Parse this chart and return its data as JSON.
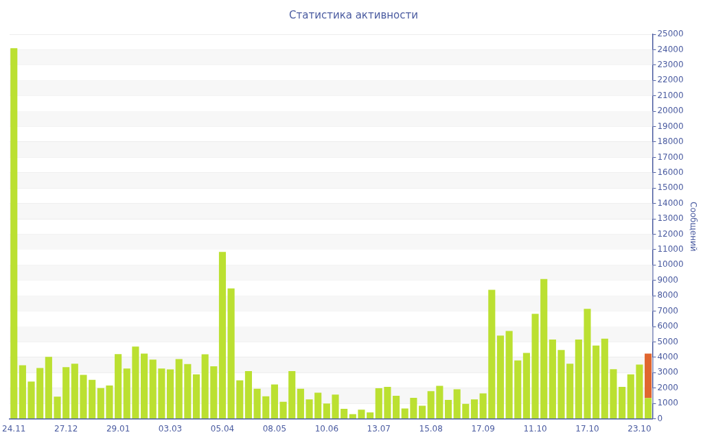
{
  "chart_data": {
    "type": "bar",
    "title": "Статистика активности",
    "ylabel": "Сообщений",
    "stacked": true,
    "categories": [
      "24.11",
      null,
      null,
      null,
      null,
      null,
      "27.12",
      null,
      null,
      null,
      null,
      null,
      "29.01",
      null,
      null,
      null,
      null,
      null,
      "03.03",
      null,
      null,
      null,
      null,
      null,
      "05.04",
      null,
      null,
      null,
      null,
      null,
      "08.05",
      null,
      null,
      null,
      null,
      null,
      "10.06",
      null,
      null,
      null,
      null,
      null,
      "13.07",
      null,
      null,
      null,
      null,
      null,
      "15.08",
      null,
      null,
      null,
      null,
      null,
      "17.09",
      null,
      null,
      null,
      null,
      null,
      "11.10",
      null,
      null,
      null,
      null,
      null,
      "17.10",
      null,
      null,
      null,
      null,
      null,
      "23.10",
      null
    ],
    "series": [
      {
        "color": "#bbe031",
        "values": [
          24100,
          3480,
          2420,
          3300,
          4030,
          1440,
          3360,
          3580,
          2860,
          2530,
          2000,
          2170,
          4210,
          3270,
          4700,
          4240,
          3850,
          3270,
          3210,
          3880,
          3560,
          2890,
          4200,
          3420,
          10850,
          8480,
          2500,
          3100,
          1950,
          1470,
          2230,
          1110,
          3100,
          1950,
          1260,
          1700,
          1000,
          1580,
          650,
          300,
          590,
          420,
          1990,
          2080,
          1500,
          670,
          1360,
          850,
          1800,
          2140,
          1230,
          1920,
          970,
          1260,
          1650,
          8390,
          5410,
          5710,
          3790,
          4290,
          6830,
          9090,
          5150,
          4480,
          3580,
          5150,
          7150,
          4760,
          5210,
          3230,
          2080,
          2890,
          3530,
          1350
        ]
      },
      {
        "color": "#e0662e",
        "values": [
          null,
          null,
          null,
          null,
          null,
          null,
          null,
          null,
          null,
          null,
          null,
          null,
          null,
          null,
          null,
          null,
          null,
          null,
          null,
          null,
          null,
          null,
          null,
          null,
          null,
          null,
          null,
          null,
          null,
          null,
          null,
          null,
          null,
          null,
          null,
          null,
          null,
          null,
          null,
          null,
          null,
          null,
          null,
          null,
          null,
          null,
          null,
          null,
          null,
          null,
          null,
          null,
          null,
          null,
          null,
          null,
          null,
          null,
          null,
          null,
          null,
          null,
          null,
          null,
          null,
          null,
          null,
          null,
          null,
          null,
          null,
          null,
          null,
          2890
        ]
      }
    ],
    "ylim": [
      0,
      25000
    ],
    "yticks": [
      0,
      1000,
      2000,
      3000,
      4000,
      5000,
      6000,
      7000,
      8000,
      9000,
      10000,
      11000,
      12000,
      13000,
      14000,
      15000,
      16000,
      17000,
      18000,
      19000,
      20000,
      21000,
      22000,
      23000,
      24000,
      25000
    ],
    "grid": "y",
    "legend": false
  }
}
